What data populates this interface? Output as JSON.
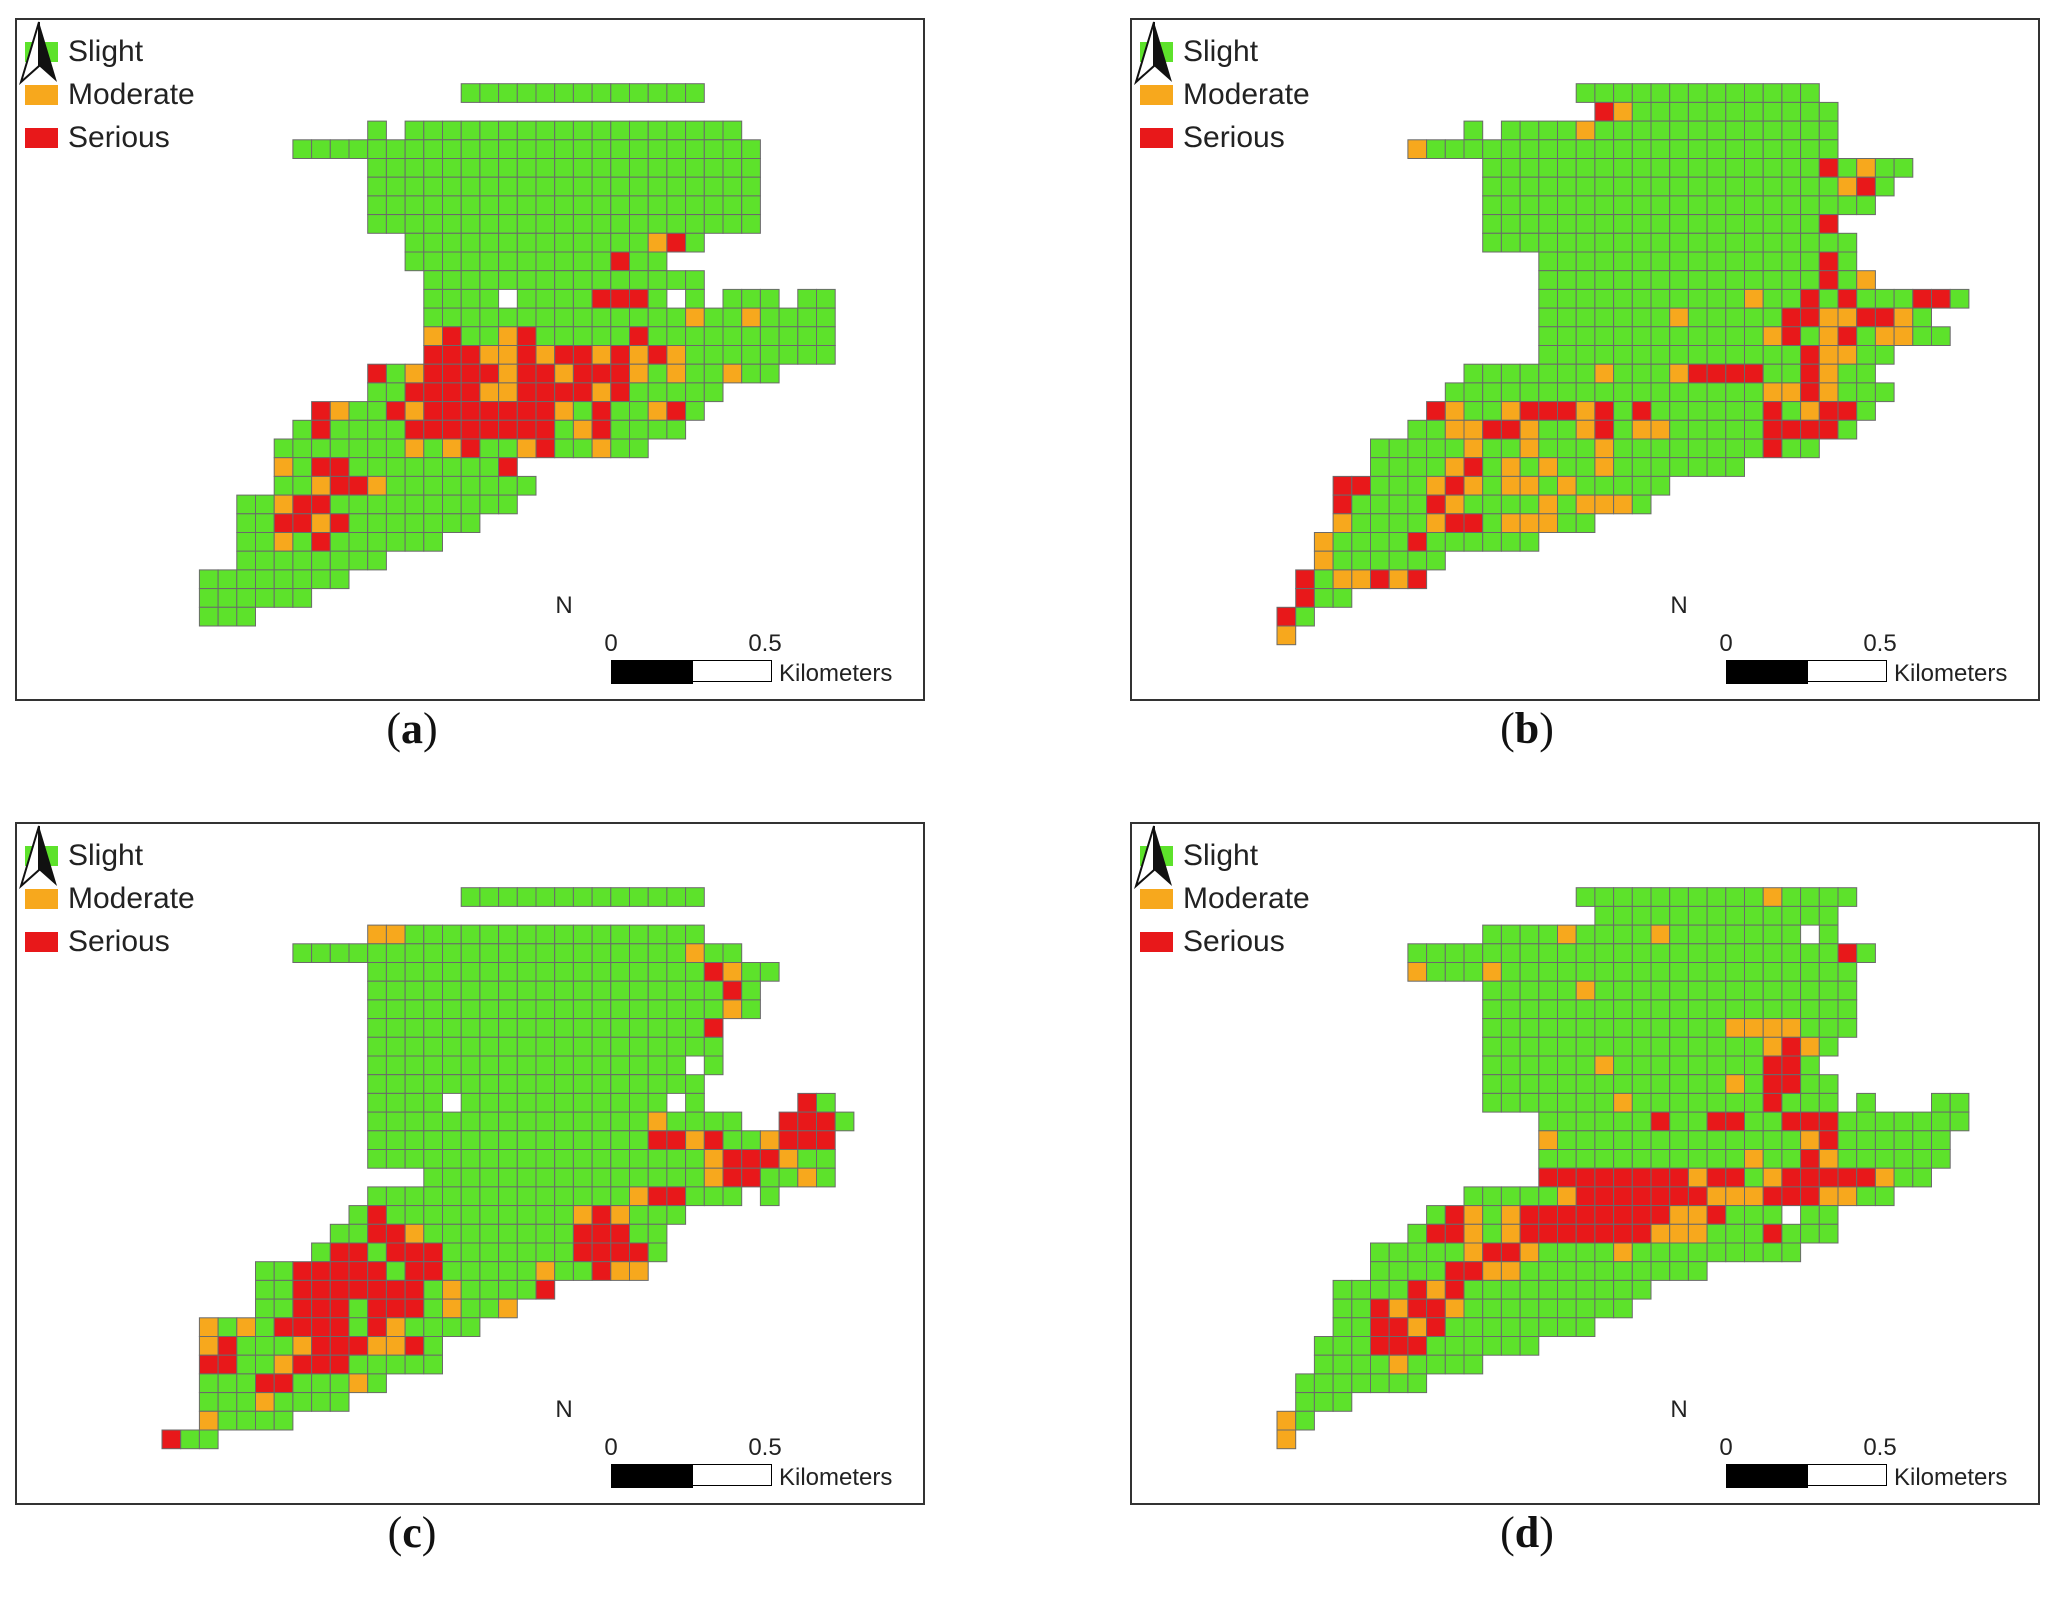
{
  "colors": {
    "Slight": "#5de22b",
    "Moderate": "#f7a81d",
    "Serious": "#e8181a",
    "grid_line": "#6a6a6a"
  },
  "legend": {
    "slight": "Slight",
    "moderate": "Moderate",
    "serious": "Serious"
  },
  "scale_bar": {
    "tick_start": "0",
    "tick_end": "0.5",
    "unit": "Kilometers"
  },
  "north_arrow": {
    "letter": "N"
  },
  "grid": {
    "rows": 30,
    "cols": 36
  },
  "panels": [
    {
      "id": "a",
      "caption_open": "(",
      "caption_letter": "a",
      "caption_close": ")",
      "rows": [
        ".........................",
        "................LLLLLLLLLLLLL.......",
        "..............................",
        "...........L.LLLLLLLLLLLLLLLLLL.....",
        ".......LLLLLLLLLLLLLLLLLLLLLLLLL....",
        "...........LLLLLLLLLLLLLLLLLLLLL....",
        "...........LLLLLLLLLLLLLLLLLLLLL....",
        "...........LLLLLLLLLLLLLLLLLLLLL....",
        "...........LLLLLLLLLLLLLLLLLLLLL....",
        ".............LLLLLLLLLLLLLMSL.......",
        ".............LLLLLLLLLLLSLL.........",
        "..............LLLLLLLLLLLLLLL.......",
        "..............LLLL.LLLLSSSL.L.LLL.LL",
        "..............LLLLLLLLLLLLLLMLLMLLLL",
        "..............MSLLMSLLLLLSLLLLLLLLLL",
        "..............SSSMMSMSSMSMSMLLLLLLLL",
        "...........SLMSSSSMSSMSSSMLMLLMLL...",
        "...........LLSSSSMMSSSSMSLLLLL.....",
        "........SMLLSMSSSSSSSMLSLLMSL.......",
        ".......LSLLLLSSSSSSSSLMSLLLL........",
        "......LLLLLLLMLMSLLMSLLMLL..........",
        "......MLSSLLLLLLLLS................",
        "......LLMSSMLLLLLLLL...............",
        "....LLMSSLLLLLLLLLL................",
        "....LLSSMSLLLLLLL..................",
        "....LLMLSLLLLLL....................",
        "....LLLLLLLL.......................",
        "..LLLLLLLL.........................",
        "..LLLLLL...........................",
        "..LLL.............................."
      ]
    },
    {
      "id": "b",
      "caption_open": "(",
      "caption_letter": "b",
      "caption_close": ")",
      "rows": [
        "....................................",
        "................LLLLLLLLLLLLL.......",
        ".................SMLLLLLLLLLLL......",
        "..........L.LLLLMLLLLLLLLLLLLL......",
        ".......MLLLLLLLLLLLLLLLLLLLLLL......",
        "...........LLLLLLLLLLLLLLLLLLSLMLL..",
        "...........LLLLLLLLLLLLLLLLLLLMSL...",
        "...........LLLLLLLLLLLLLLLLLLLLL....",
        "...........LLLLLLLLLLLLLLLLLLS......",
        "...........LLLLLLLLLLLLLLLLLLLL.....",
        "..............LLLLLLLLLLLLLLLSL.....",
        "..............LLLLLLLLLLLLLLLSLM....",
        "..............LLLLLLLLLLLMLLSLSLLLSSL",
        "..............LLLLLLLMLLLLLSSMMSSML.",
        "..............LLLLLLLLLLLLMSLMSLMMLL",
        "..............LLLLLLLLLLLLLLSMMLL...",
        "..........LLLLLLLMLLLMSSSSLLSMLL....",
        ".........LLLLLLLLLLLLLLLLLMMSMLLL...",
        "........SMLLMSSSMSLSLLLLLLSLMSSL....",
        ".......LLMMSSMLLMSLMMLLLLLSSSSL.....",
        ".....LLLLLMLLMLLLMLLLLLLLLSLL.......",
        ".....LLLLMSLMLMLLMLLLLLLL...........",
        "...SSLLLMSMLMMLMLLLLL..............",
        "...SLLLLSMLLLLMLMMML...............",
        "...MLLLLMSSLMMMLL..................",
        "..MLLLLSLLLLLL.....................",
        "..MLLLLLL..........................",
        ".SLMMSMS...........................",
        ".SLL...............................",
        "SL.................................",
        "M.................................."
      ]
    },
    {
      "id": "c",
      "caption_open": "(",
      "caption_letter": "c",
      "caption_close": ")",
      "rows": [
        "....................................",
        "................LLLLLLLLLLLLL.......",
        ".................................",
        "...........MMLLLLLLLLLLLLLLLL......",
        ".......LLLLLLLLLLLLLLLLLLLLLMLL.....",
        "...........LLLLLLLLLLLLLLLLLLSMLL...",
        "...........LLLLLLLLLLLLLLLLLLLSL....",
        "...........LLLLLLLLLLLLLLLLLLLML....",
        "...........LLLLLLLLLLLLLLLLLLS......",
        "...........LLLLLLLLLLLLLLLLLLL......",
        "...........LLLLLLLLLLLLLLLLL.L......",
        "...........LLLLLLLLLLLLLLLLLL.......",
        "...........LLLL.LLLLLLLLLLL.L.....SL",
        "...........LLLLLLLLLLLLLLLMLLLL..SSSL",
        "...........LLLLLLLLLLLLLLLSSMSLLMSSS",
        "...........LLLLLLLLLLLLLLLLLLMSSSMLL",
        "..............LLLLLLLLLLLLLLLMSSLLML",
        "...........LLLLLLLLLLLLLLMSSLLL.L...",
        "..........LSLLLLLLLLLLMSMLLL........",
        ".........LLSSMLLLLLLLLSSSLL.........",
        "........LSSLSSSLLLLLLLSSSSL.........",
        ".....LLSSSSSLSSLLLLLMLLSMM..........",
        ".....LLSSSSSSSLMLLLLS..............",
        ".....LLSSSLSSSLMLLM................",
        "..MLMLSSSSLSMLLLL..................",
        "..MSLLLMSSSMMSL....................",
        "..SSLLMSSSLLLLL....................",
        "..LLLSSLLLML.......................",
        "..LLLMLLLL.........................",
        "..MLLLL............................",
        "SLL................................."
      ]
    },
    {
      "id": "d",
      "caption_open": "(",
      "caption_letter": "d",
      "caption_close": ")",
      "rows": [
        "....................................",
        "................LLLLLLLLLLMLLLL......",
        ".................LLLLLLLLLLLLL......",
        "...........LLLLMLLLLMLLLLLLL.L......",
        ".......LLLLLLLLLLLLLLLLLLLLLLLSL....",
        ".......MLLLMLLLLLLLLLLLLLLLLLLL.....",
        "...........LLLLLMLLLLLLLLLLLLLL.....",
        "...........LLLLLLLLLLLLLLLLLLLL.....",
        "...........LLLLLLLLLLLLLMMMMLLL.....",
        "...........LLLLLLLLLLLLLLLMSML......",
        "...........LLLLLLMLLLLLLLLSSL.......",
        "...........LLLLLLLLLLLLLMLSSLL......",
        "...........LLLLLLLMLLLLLLLSLLL.L...LL",
        "..............LLLLLLSLLSSLLSSSLLLLLLL",
        "..............MLLLLLLLLLLLLLMSLLLLLL",
        "..............LLLLLLLLLLLMLLSMLLLLLL",
        "..............SSSSSSSSMSSLMSSSSSMLL...",
        "..........LLLLLMSSSSSSSMMMSSSMMLL....",
        "........LSMLMSSSSSSSSMMSLLL.LL.......",
        ".......LSSMLMSSSSSSSMMMLLLSLLL.......",
        ".....LLLLLMSSMLLLLMLLLLLLLLL.........",
        ".....LLLLSSMMLLLLLLLLLL..............",
        "...LLLLSMSLLLLLLLLLL................",
        "...LLSMSSMLLLLLLLLL.................",
        "...LLSSMSLLLLLLLL...................",
        "..LLLSSSLLLLLL......................",
        "..LLLLMLLLL.........................",
        ".LLLLLLL............................",
        ".LLL................................",
        "ML..................................",
        "M..................................."
      ]
    }
  ]
}
